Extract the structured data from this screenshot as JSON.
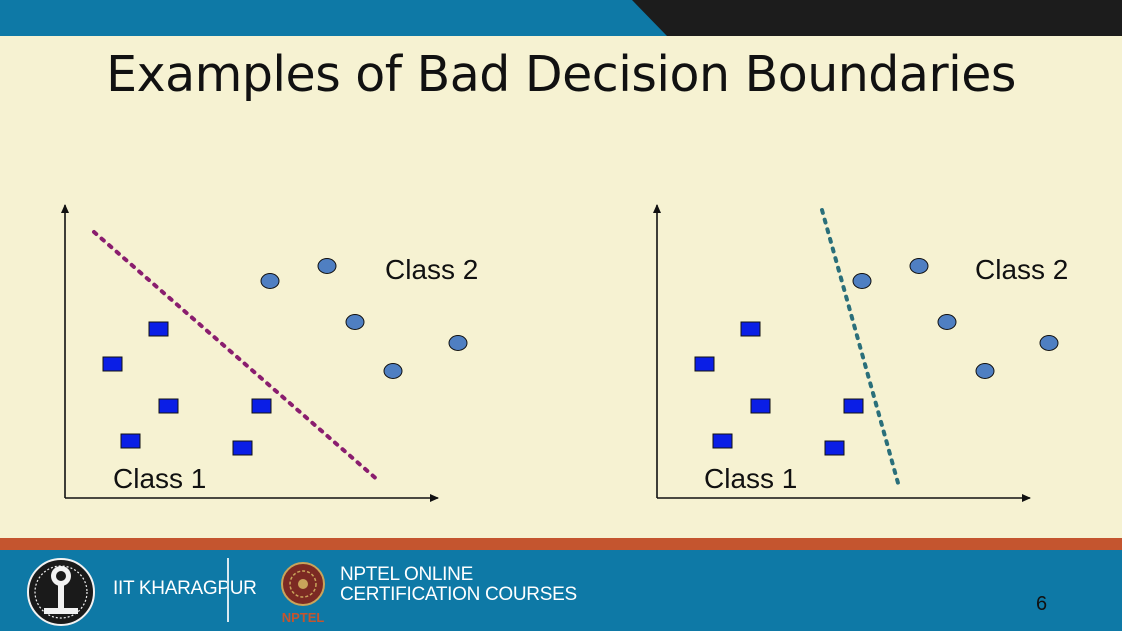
{
  "slide": {
    "title": "Examples of Bad Decision Boundaries",
    "page_number": "6"
  },
  "diagrams": [
    {
      "class1_label": "Class 1",
      "class2_label": "Class 2",
      "boundary_color": "#8a1d6e"
    },
    {
      "class1_label": "Class 1",
      "class2_label": "Class 2",
      "boundary_color": "#2a6f7a"
    }
  ],
  "footer": {
    "institute": "IIT KHARAGPUR",
    "program_line1": "NPTEL ONLINE",
    "program_line2": "CERTIFICATION COURSES",
    "nptel_logo_text": "NPTEL"
  },
  "colors": {
    "background": "#f6f2d2",
    "square_fill": "#0a1ee6",
    "circle_fill": "#4f7fc2",
    "top_band_blue": "#0e79a6",
    "top_band_dark": "#1c1c1c",
    "footer_stripe": "#c4552f"
  }
}
